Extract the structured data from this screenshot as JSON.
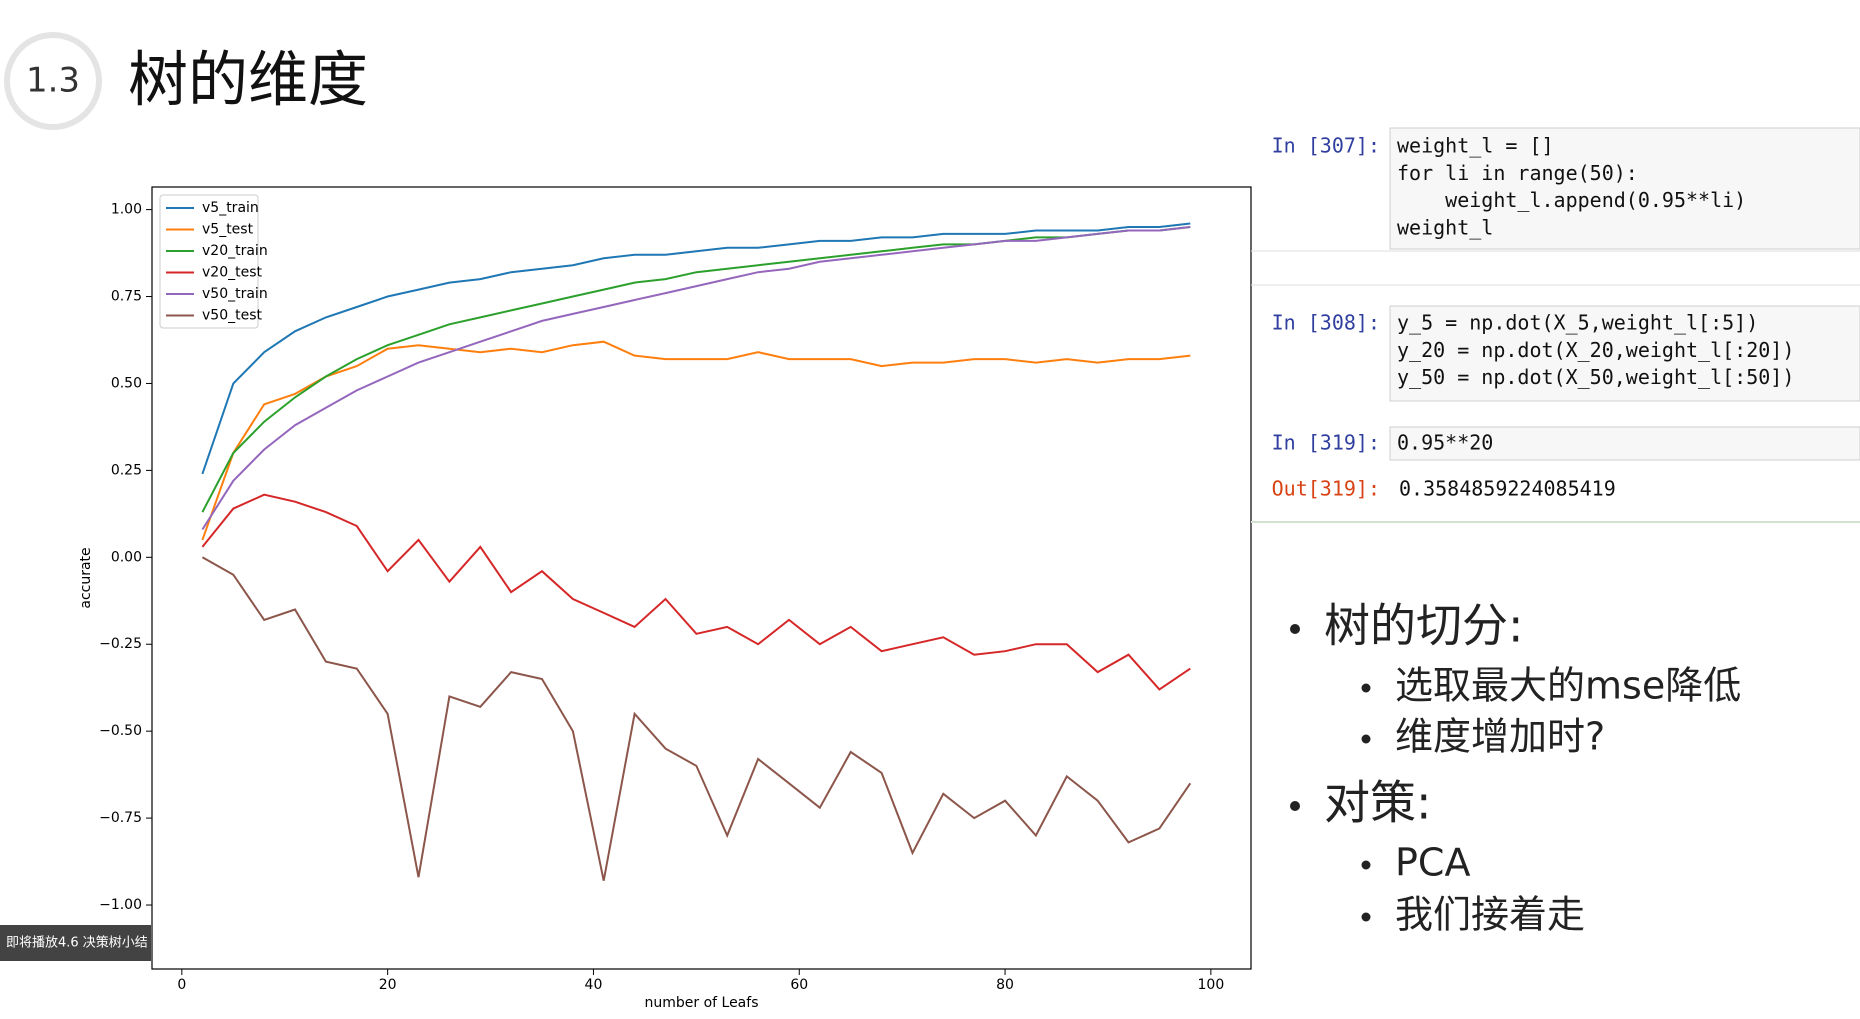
{
  "header": {
    "number": "1.3",
    "title": "树的维度"
  },
  "chart_data": {
    "type": "line",
    "xlabel": "number of Leafs",
    "ylabel": "accurate",
    "x": [
      2,
      5,
      8,
      11,
      14,
      17,
      20,
      23,
      26,
      29,
      32,
      35,
      38,
      41,
      44,
      47,
      50,
      53,
      56,
      59,
      62,
      65,
      68,
      71,
      74,
      77,
      80,
      83,
      86,
      89,
      92,
      95,
      98
    ],
    "series": [
      {
        "name": "v5_train",
        "color": "#1f77b4",
        "values": [
          0.24,
          0.5,
          0.59,
          0.65,
          0.69,
          0.72,
          0.75,
          0.77,
          0.79,
          0.8,
          0.82,
          0.83,
          0.84,
          0.86,
          0.87,
          0.87,
          0.88,
          0.89,
          0.89,
          0.9,
          0.91,
          0.91,
          0.92,
          0.92,
          0.93,
          0.93,
          0.93,
          0.94,
          0.94,
          0.94,
          0.95,
          0.95,
          0.96
        ]
      },
      {
        "name": "v5_test",
        "color": "#ff7f0e",
        "values": [
          0.05,
          0.3,
          0.44,
          0.47,
          0.52,
          0.55,
          0.6,
          0.61,
          0.6,
          0.59,
          0.6,
          0.59,
          0.61,
          0.62,
          0.58,
          0.57,
          0.57,
          0.57,
          0.59,
          0.57,
          0.57,
          0.57,
          0.55,
          0.56,
          0.56,
          0.57,
          0.57,
          0.56,
          0.57,
          0.56,
          0.57,
          0.57,
          0.58
        ]
      },
      {
        "name": "v20_train",
        "color": "#2ca02c",
        "values": [
          0.13,
          0.3,
          0.39,
          0.46,
          0.52,
          0.57,
          0.61,
          0.64,
          0.67,
          0.69,
          0.71,
          0.73,
          0.75,
          0.77,
          0.79,
          0.8,
          0.82,
          0.83,
          0.84,
          0.85,
          0.86,
          0.87,
          0.88,
          0.89,
          0.9,
          0.9,
          0.91,
          0.92,
          0.92,
          0.93,
          0.94,
          0.94,
          0.95
        ]
      },
      {
        "name": "v20_test",
        "color": "#d62728",
        "values": [
          0.03,
          0.14,
          0.18,
          0.16,
          0.13,
          0.09,
          -0.04,
          0.05,
          -0.07,
          0.03,
          -0.1,
          -0.04,
          -0.12,
          -0.16,
          -0.2,
          -0.12,
          -0.22,
          -0.2,
          -0.25,
          -0.18,
          -0.25,
          -0.2,
          -0.27,
          -0.25,
          -0.23,
          -0.28,
          -0.27,
          -0.25,
          -0.25,
          -0.33,
          -0.28,
          -0.38,
          -0.32
        ]
      },
      {
        "name": "v50_train",
        "color": "#9467bd",
        "values": [
          0.08,
          0.22,
          0.31,
          0.38,
          0.43,
          0.48,
          0.52,
          0.56,
          0.59,
          0.62,
          0.65,
          0.68,
          0.7,
          0.72,
          0.74,
          0.76,
          0.78,
          0.8,
          0.82,
          0.83,
          0.85,
          0.86,
          0.87,
          0.88,
          0.89,
          0.9,
          0.91,
          0.91,
          0.92,
          0.93,
          0.94,
          0.94,
          0.95
        ]
      },
      {
        "name": "v50_test",
        "color": "#8c564b",
        "values": [
          0.0,
          -0.05,
          -0.18,
          -0.15,
          -0.3,
          -0.32,
          -0.45,
          -0.92,
          -0.4,
          -0.43,
          -0.33,
          -0.35,
          -0.5,
          -0.93,
          -0.45,
          -0.55,
          -0.6,
          -0.8,
          -0.58,
          -0.65,
          -0.72,
          -0.56,
          -0.62,
          -0.85,
          -0.68,
          -0.75,
          -0.7,
          -0.8,
          -0.63,
          -0.7,
          -0.82,
          -0.78,
          -0.65
        ]
      }
    ],
    "xlim": [
      -2.9,
      103.9
    ],
    "ylim": [
      -1.184,
      1.065
    ],
    "xticks": [
      0,
      20,
      40,
      60,
      80,
      100
    ],
    "yticks": [
      {
        "value": -1,
        "label": "−1.00"
      },
      {
        "value": -0.75,
        "label": "−0.75"
      },
      {
        "value": -0.5,
        "label": "−0.50"
      },
      {
        "value": -0.25,
        "label": "−0.25"
      },
      {
        "value": 0,
        "label": "0.00"
      },
      {
        "value": 0.25,
        "label": "0.25"
      },
      {
        "value": 0.5,
        "label": "0.50"
      },
      {
        "value": 0.75,
        "label": "0.75"
      },
      {
        "value": 1,
        "label": "1.00"
      }
    ],
    "legend": "upper left"
  },
  "notebook": {
    "cells": [
      {
        "prompt": "In [307]:",
        "lines": [
          "weight_l = []",
          "for li in range(50):",
          "    weight_l.append(0.95**li)",
          "weight_l"
        ]
      },
      {
        "prompt": "In [308]:",
        "lines": [
          "y_5 = np.dot(X_5,weight_l[:5])",
          "y_20 = np.dot(X_20,weight_l[:20])",
          "y_50 = np.dot(X_50,weight_l[:50])"
        ]
      },
      {
        "prompt": "In [319]:",
        "lines": [
          "0.95**20"
        ]
      }
    ],
    "output": {
      "prompt": "Out[319]:",
      "text": "0.3584859224085419"
    }
  },
  "bullets": [
    {
      "text": "树的切分:",
      "items": [
        "选取最大的mse降低",
        "维度增加时?"
      ]
    },
    {
      "text": "对策:",
      "items": [
        "PCA",
        "我们接着走"
      ]
    }
  ],
  "badge": "即将播放4.6 决策树小结"
}
